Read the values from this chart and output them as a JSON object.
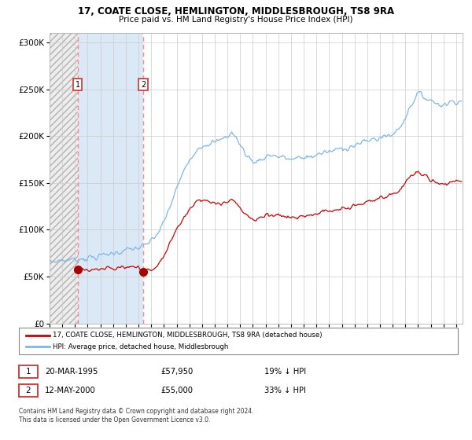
{
  "title1": "17, COATE CLOSE, HEMLINGTON, MIDDLESBROUGH, TS8 9RA",
  "title2": "Price paid vs. HM Land Registry's House Price Index (HPI)",
  "sale1_date": "20-MAR-1995",
  "sale1_price": 57950,
  "sale2_date": "12-MAY-2000",
  "sale2_price": 55000,
  "legend_line1": "17, COATE CLOSE, HEMLINGTON, MIDDLESBROUGH, TS8 9RA (detached house)",
  "legend_line2": "HPI: Average price, detached house, Middlesbrough",
  "table_row1": [
    "1",
    "20-MAR-1995",
    "£57,950",
    "19% ↓ HPI"
  ],
  "table_row2": [
    "2",
    "12-MAY-2000",
    "£55,000",
    "33% ↓ HPI"
  ],
  "footnote": "Contains HM Land Registry data © Crown copyright and database right 2024.\nThis data is licensed under the Open Government Licence v3.0.",
  "hpi_color": "#7eb6e8",
  "price_paid_color": "#cc0000",
  "sale_marker_color": "#aa0000",
  "vline_color": "#ff8888",
  "grid_color": "#cccccc",
  "ylim": [
    0,
    310000
  ],
  "yticks": [
    0,
    50000,
    100000,
    150000,
    200000,
    250000,
    300000
  ],
  "sale1_x_year": 1995.22,
  "sale2_x_year": 2000.37,
  "xlim_left": 1993.0,
  "xlim_right": 2025.5
}
